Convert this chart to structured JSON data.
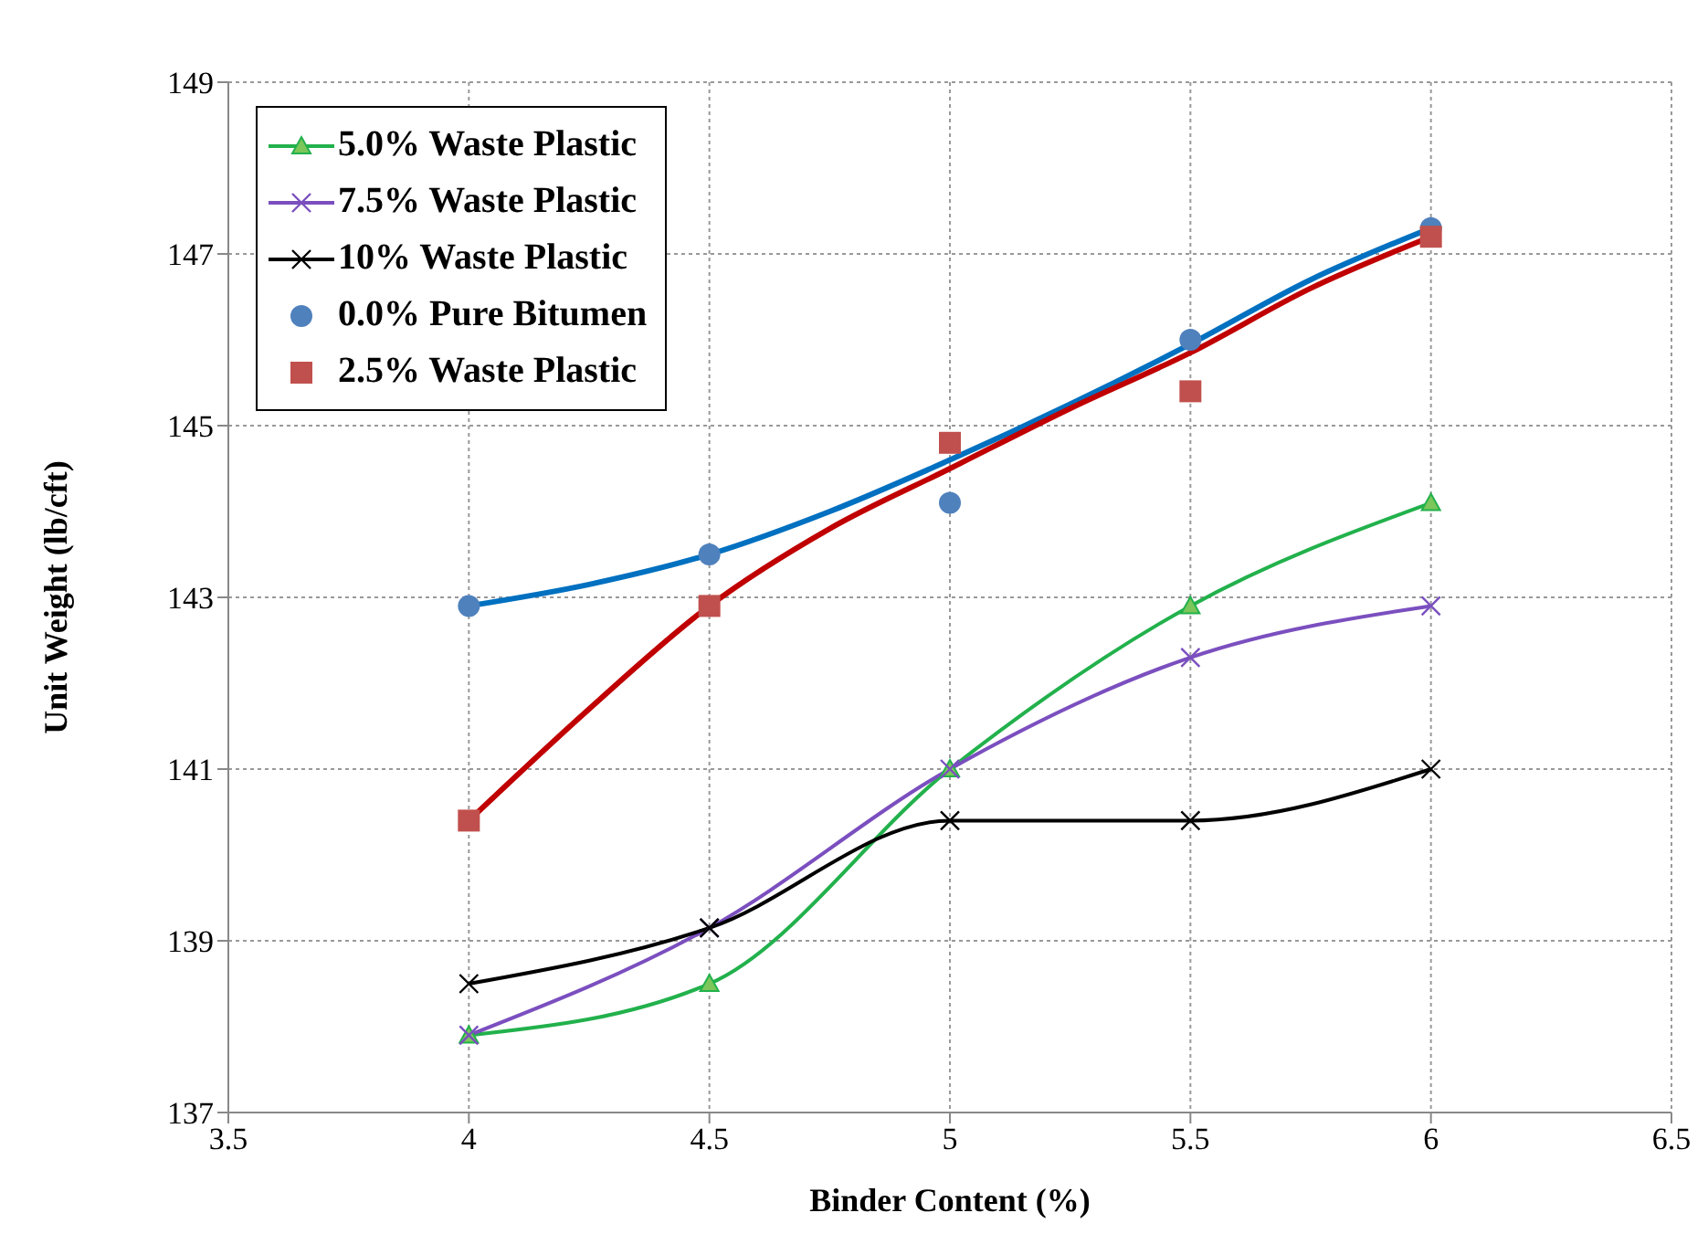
{
  "chart_data": {
    "type": "line",
    "xlabel": "Binder Content (%)",
    "ylabel": "Unit Weight (lb/cft)",
    "x": [
      4,
      4.5,
      5,
      5.5,
      6
    ],
    "xlim": [
      3.5,
      6.5
    ],
    "xticks": [
      3.5,
      4,
      4.5,
      5,
      5.5,
      6,
      6.5
    ],
    "ylim": [
      137,
      149
    ],
    "yticks": [
      137,
      139,
      141,
      143,
      145,
      147,
      149
    ],
    "grid": true,
    "legend": "top left",
    "line_style": "solid",
    "series": [
      {
        "name": "5.0% Waste Plastic",
        "marker": "triangle",
        "color": "#22b14c",
        "values": [
          137.9,
          138.5,
          141.0,
          142.9,
          144.1
        ]
      },
      {
        "name": "7.5% Waste Plastic",
        "marker": "cross",
        "color": "#7b4fbf",
        "values": [
          137.9,
          139.15,
          141.0,
          142.3,
          142.9
        ]
      },
      {
        "name": "10% Waste Plastic",
        "marker": "cross",
        "color": "#000000",
        "values": [
          138.5,
          139.15,
          140.4,
          140.4,
          141.0
        ]
      },
      {
        "name": "0.0% Pure Bitumen",
        "type": "scatter",
        "marker": "circle",
        "color": "#4f81bd",
        "values": [
          142.9,
          143.5,
          144.1,
          146.0,
          147.3
        ]
      },
      {
        "name": "2.5% Waste Plastic",
        "type": "scatter",
        "marker": "square",
        "color": "#c0504d",
        "values": [
          140.4,
          142.9,
          144.8,
          145.4,
          147.2
        ]
      },
      {
        "marker": "none",
        "color": "#0070c0",
        "x": [
          4,
          4.25,
          4.5,
          4.75,
          5,
          5.25,
          5.5,
          5.75,
          6
        ],
        "values": [
          142.9,
          143.15,
          143.5,
          144.0,
          144.6,
          145.25,
          145.95,
          146.7,
          147.3
        ]
      },
      {
        "marker": "none",
        "color": "#c00000",
        "x": [
          4,
          4.25,
          4.5,
          4.75,
          5,
          5.25,
          5.5,
          5.75,
          6
        ],
        "values": [
          140.4,
          141.7,
          142.9,
          143.8,
          144.5,
          145.2,
          145.85,
          146.6,
          147.2
        ]
      }
    ]
  }
}
